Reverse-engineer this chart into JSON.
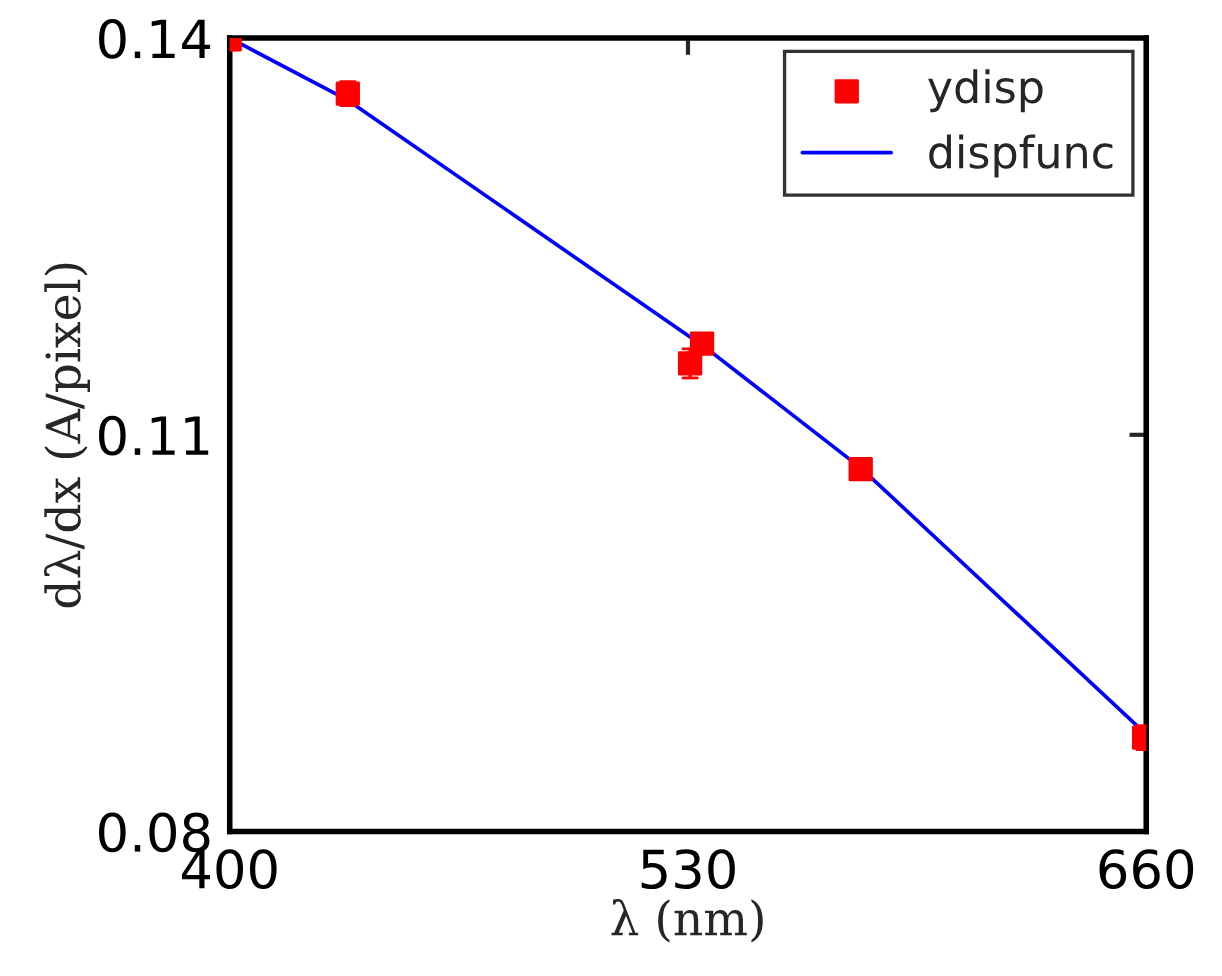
{
  "chart_data": {
    "type": "scatter",
    "xlabel": "λ (nm)",
    "ylabel": "dλ/dx (A/pixel)",
    "xlim": [
      400,
      660
    ],
    "xticks": [
      400,
      530,
      660
    ],
    "ylim": [
      0.08,
      0.14
    ],
    "yticks": [
      0.08,
      0.11,
      0.14
    ],
    "grid": false,
    "legend": "top right",
    "series": [
      {
        "name": "ydisp",
        "marker": "square",
        "color": "#ff0000",
        "x": [
          400,
          433.5,
          530.6,
          534,
          579,
          659.4
        ],
        "values": [
          0.1399,
          0.1358,
          0.1154,
          0.1169,
          0.1074,
          0.0871
        ],
        "errors": [
          0.0008,
          0.0009,
          0.0011,
          0.0006,
          0.0006,
          0.0009
        ]
      },
      {
        "name": "dispfunc",
        "type": "line",
        "marker": "none",
        "line_style": "solid",
        "color": "#0000ff",
        "x": [
          400,
          433.5,
          530.6,
          534,
          579,
          659.4
        ],
        "values": [
          0.14,
          0.1353,
          0.1174,
          0.1168,
          0.1075,
          0.0875
        ]
      }
    ]
  }
}
